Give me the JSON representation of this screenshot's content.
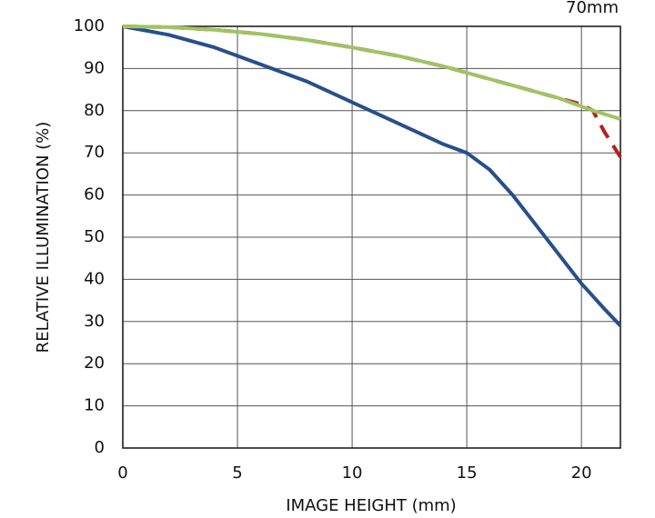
{
  "chart_data": {
    "type": "line",
    "title": "70mm",
    "x_label": "IMAGE HEIGHT (mm)",
    "y_label": "RELATIVE ILLUMINATION (%)",
    "x": [
      0,
      2,
      4,
      6,
      8,
      10,
      12,
      14,
      15,
      16,
      17,
      18,
      19,
      20,
      20.5,
      21,
      21.7
    ],
    "series": [
      {
        "color": "#27508a",
        "linestyle": "solid",
        "values": [
          100,
          98,
          95,
          91,
          87,
          82,
          77,
          72,
          70,
          66,
          60,
          53,
          46,
          39,
          36,
          33,
          29
        ]
      },
      {
        "color": "#b3201c",
        "linestyle": "dashed",
        "values": [
          100,
          99.8,
          99.2,
          98.2,
          96.8,
          95,
          93,
          90.5,
          89,
          87.5,
          86,
          84.5,
          83,
          81.5,
          80,
          75,
          69
        ]
      },
      {
        "color": "#9ec463",
        "linestyle": "solid",
        "values": [
          100,
          99.8,
          99.2,
          98.2,
          96.8,
          95,
          93,
          90.5,
          89,
          87.5,
          86,
          84.5,
          83,
          81,
          80,
          79.2,
          78
        ]
      }
    ],
    "xlim": [
      0,
      21.7
    ],
    "ylim": [
      0,
      100
    ],
    "xticks": [
      0,
      5,
      10,
      15,
      20
    ],
    "yticks": [
      0,
      10,
      20,
      30,
      40,
      50,
      60,
      70,
      80,
      90,
      100
    ],
    "grid": true
  }
}
